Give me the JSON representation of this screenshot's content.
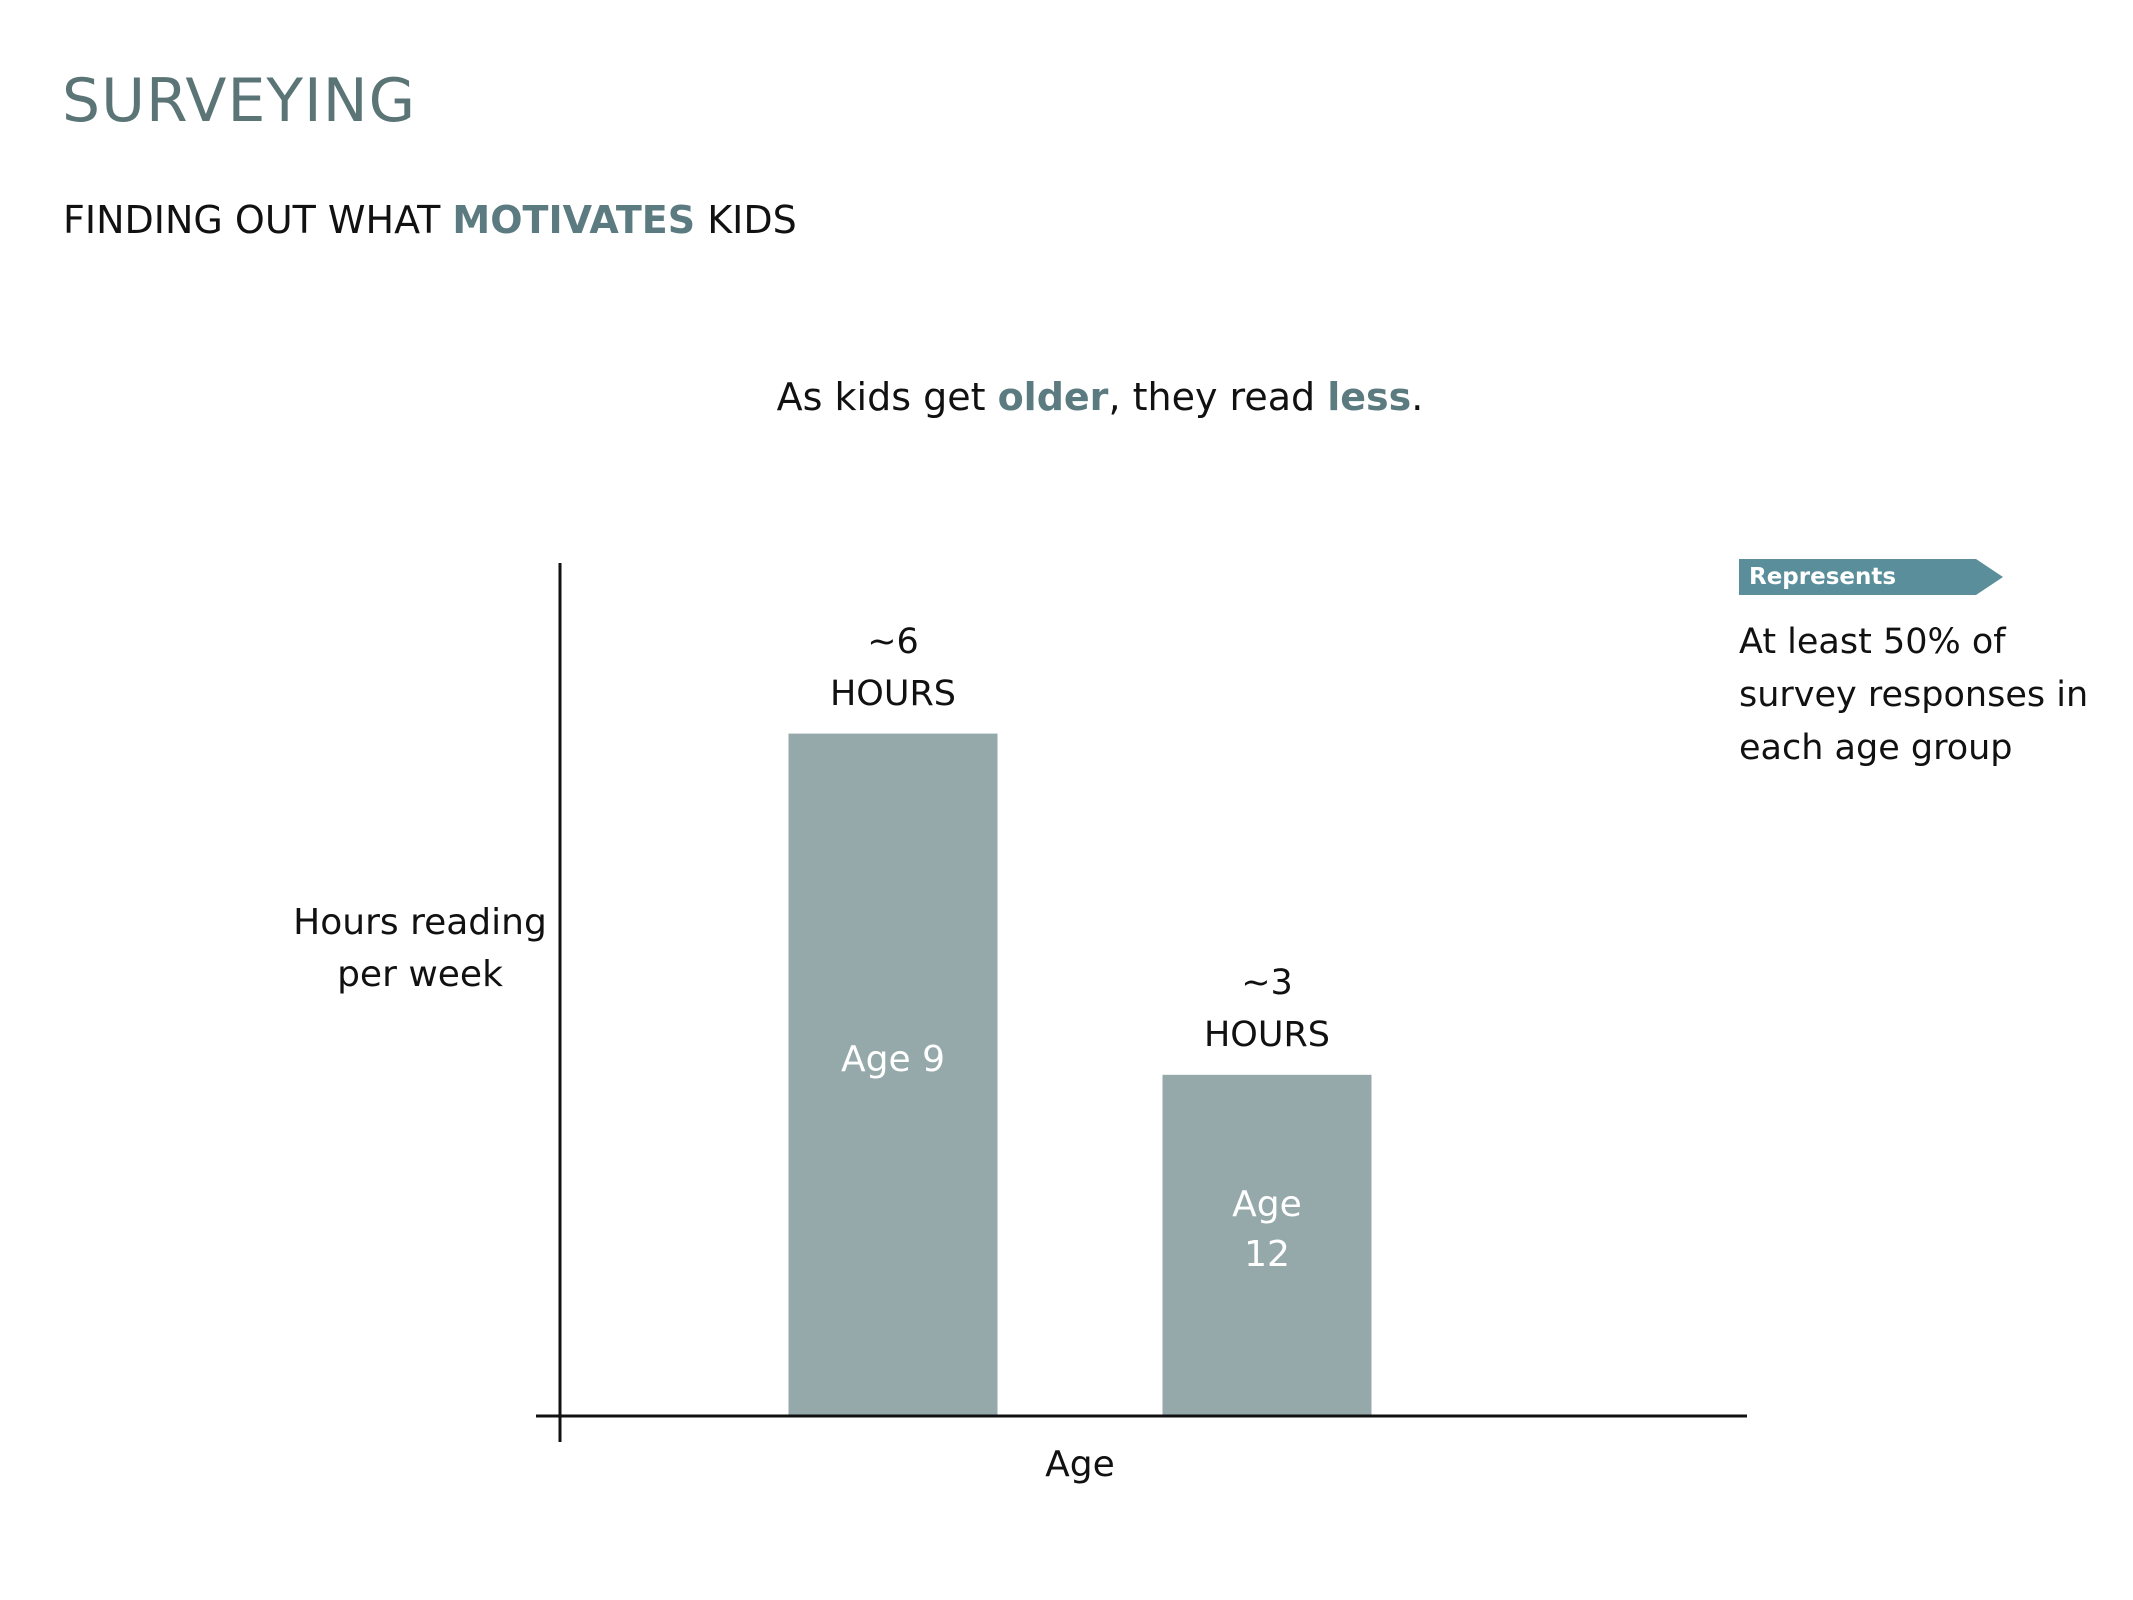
{
  "header": {
    "title": "SURVEYING",
    "subtitle": [
      "FINDING OUT WHAT",
      "MOTIVATES",
      "KIDS"
    ]
  },
  "chart_data": {
    "type": "bar",
    "title": [
      "As kids get",
      "older",
      ", they read",
      "less",
      "."
    ],
    "categories": [
      "Age 9",
      "Age 12"
    ],
    "values": [
      6,
      3
    ],
    "value_labels": [
      "~6 HOURS",
      "~3 HOURS"
    ],
    "color": "#95a9aa",
    "ylim": [
      0,
      7.5
    ],
    "grid": false,
    "y_label": "Hours reading per week",
    "x_label": "Age"
  },
  "legend": {
    "tag": "Represents",
    "text": "At least 50% of survey responses in each age group"
  }
}
